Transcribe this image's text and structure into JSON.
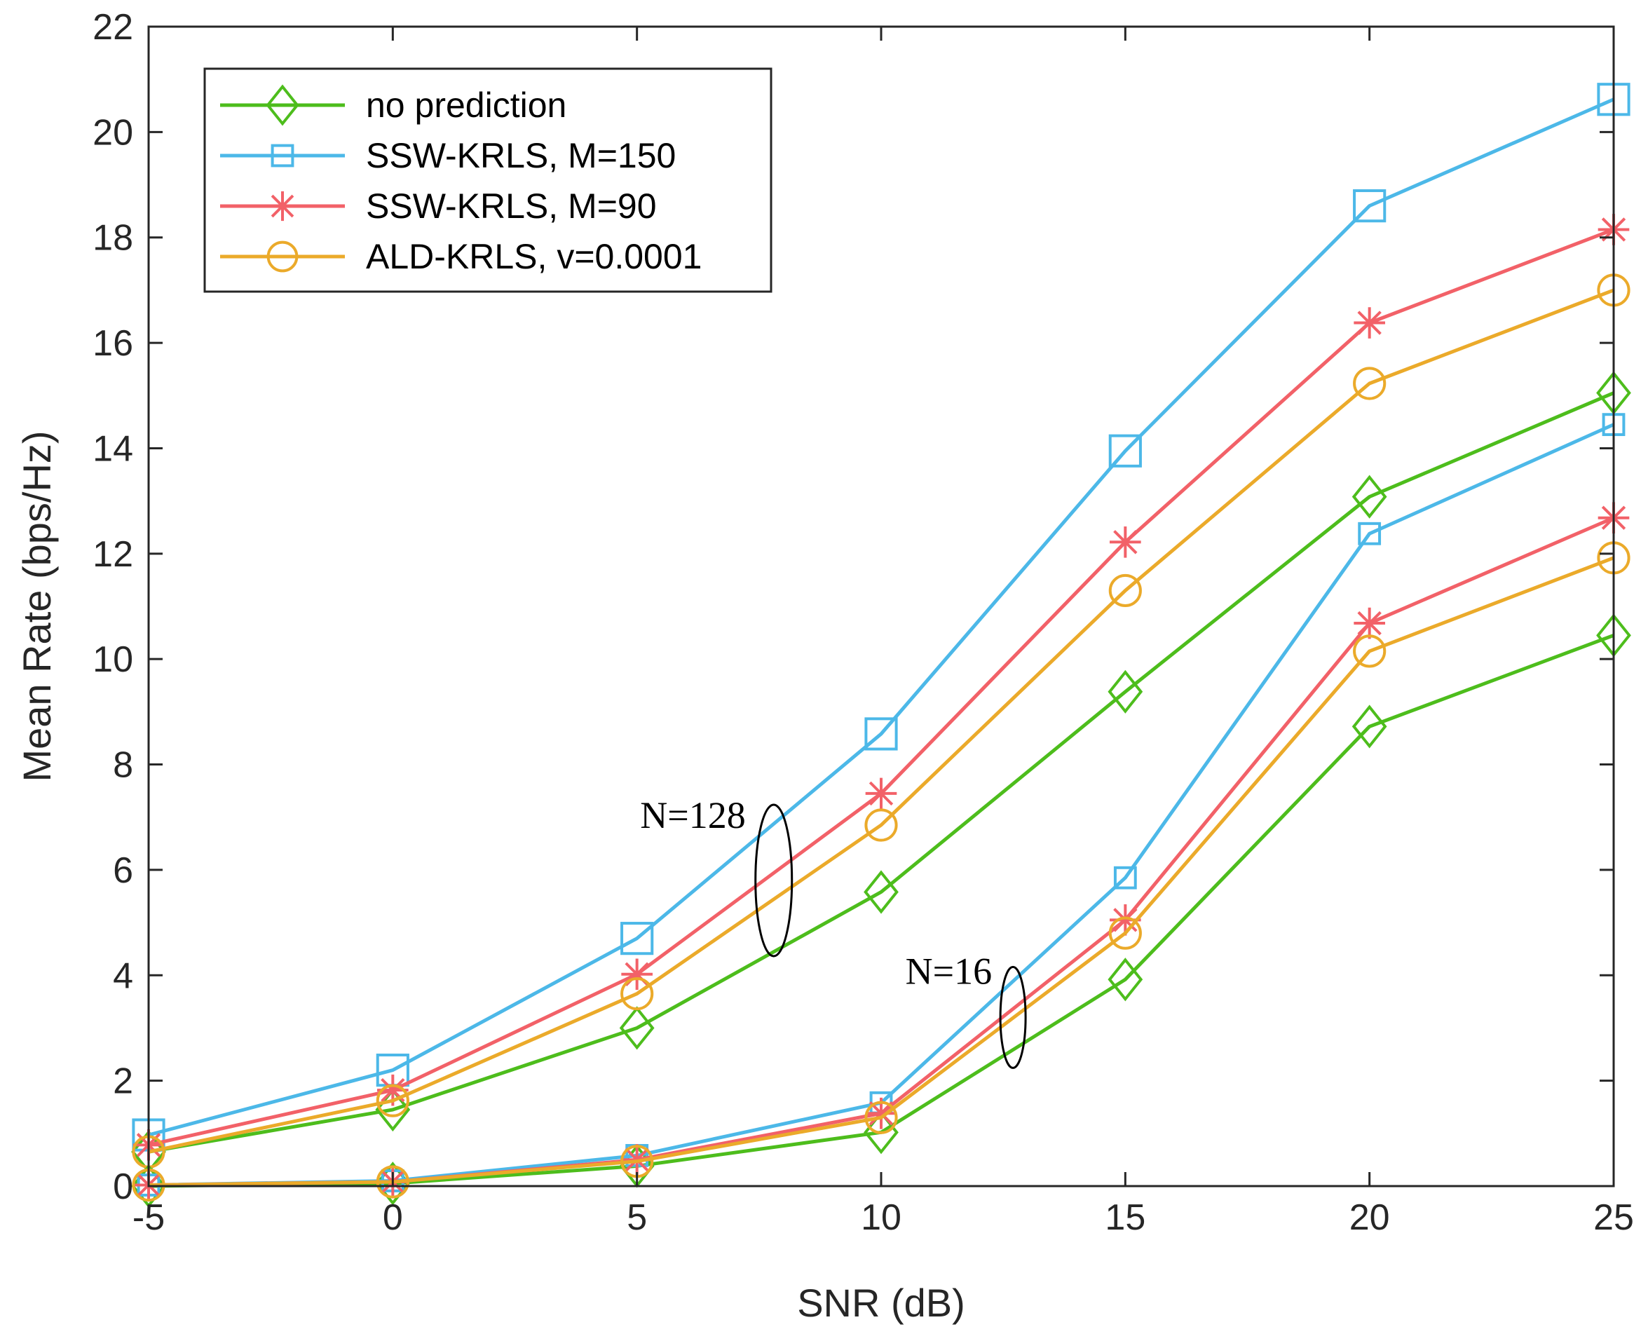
{
  "chart_data": {
    "type": "line",
    "title": "",
    "xlabel": "SNR (dB)",
    "ylabel": "Mean Rate (bps/Hz)",
    "xlim": [
      -5,
      25
    ],
    "ylim": [
      0,
      22
    ],
    "x": [
      -5,
      0,
      5,
      10,
      15,
      20,
      25
    ],
    "xticks": [
      "-5",
      "0",
      "5",
      "10",
      "15",
      "20",
      "25"
    ],
    "yticks": [
      "0",
      "2",
      "4",
      "6",
      "8",
      "10",
      "12",
      "14",
      "16",
      "18",
      "20",
      "22"
    ],
    "grid": false,
    "legend_position": "top-left",
    "series": [
      {
        "name": "no prediction",
        "group": "N=128",
        "color": "#4dbd1c",
        "marker": "diamond",
        "values": [
          0.65,
          1.45,
          3.0,
          5.58,
          9.38,
          13.08,
          15.05
        ]
      },
      {
        "name": "SSW-KRLS, M=150",
        "group": "N=128",
        "color": "#4cb8e8",
        "marker": "square",
        "values": [
          0.97,
          2.2,
          4.7,
          8.58,
          13.95,
          18.6,
          20.62
        ]
      },
      {
        "name": "SSW-KRLS, M=90",
        "group": "N=128",
        "color": "#f26168",
        "marker": "asterisk",
        "values": [
          0.78,
          1.82,
          4.02,
          7.45,
          12.22,
          16.38,
          18.15
        ]
      },
      {
        "name": "ALD-KRLS, v=0.0001",
        "group": "N=128",
        "color": "#ebaa2a",
        "marker": "circle",
        "values": [
          0.65,
          1.62,
          3.65,
          6.85,
          11.3,
          15.23,
          17.0
        ]
      },
      {
        "name": "no prediction",
        "group": "N=16",
        "color": "#4dbd1c",
        "marker": "diamond",
        "values": [
          0.0,
          0.05,
          0.38,
          1.02,
          3.92,
          8.72,
          10.45
        ]
      },
      {
        "name": "SSW-KRLS, M=150",
        "group": "N=16",
        "color": "#4cb8e8",
        "marker": "square",
        "values": [
          0.02,
          0.1,
          0.58,
          1.58,
          5.85,
          12.38,
          14.45
        ]
      },
      {
        "name": "SSW-KRLS, M=90",
        "group": "N=16",
        "color": "#f26168",
        "marker": "asterisk",
        "values": [
          0.02,
          0.08,
          0.5,
          1.38,
          5.05,
          10.68,
          12.68
        ]
      },
      {
        "name": "ALD-KRLS, v=0.0001",
        "group": "N=16",
        "color": "#ebaa2a",
        "marker": "circle",
        "values": [
          0.02,
          0.08,
          0.47,
          1.3,
          4.8,
          10.15,
          11.92
        ]
      }
    ],
    "legend": [
      {
        "label": "no prediction",
        "color": "#4dbd1c",
        "marker": "diamond"
      },
      {
        "label": "SSW-KRLS, M=150",
        "color": "#4cb8e8",
        "marker": "square"
      },
      {
        "label": "SSW-KRLS, M=90",
        "color": "#f26168",
        "marker": "asterisk"
      },
      {
        "label": "ALD-KRLS, v=0.0001",
        "color": "#ebaa2a",
        "marker": "circle"
      }
    ],
    "annotations": [
      {
        "text": "N=128",
        "x": 7.8,
        "y": 5.8,
        "shape": "ellipse"
      },
      {
        "text": "N=16",
        "x": 12.7,
        "y": 3.2,
        "shape": "ellipse"
      }
    ]
  }
}
